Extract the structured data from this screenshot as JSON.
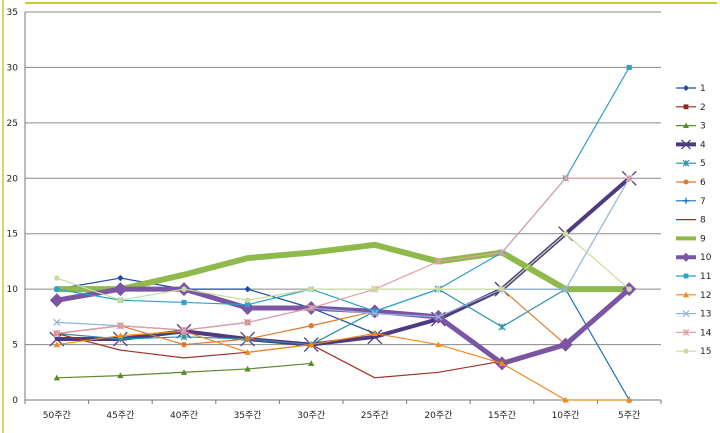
{
  "chart_data": {
    "type": "line",
    "categories": [
      "50주간",
      "45주간",
      "40주간",
      "35주간",
      "30주간",
      "25주간",
      "20주간",
      "15주간",
      "10주간",
      "5주간"
    ],
    "ylim": [
      0,
      35
    ],
    "yticks": [
      0,
      5,
      10,
      15,
      20,
      25,
      30,
      35
    ],
    "grid": true,
    "legend": "right",
    "series": [
      {
        "name": "1",
        "color": "#1f4e9b",
        "width": 1.2,
        "marker": "diamond",
        "values": [
          10,
          11,
          10,
          10,
          8.3,
          6,
          null,
          null,
          null,
          null
        ]
      },
      {
        "name": "2",
        "color": "#8e2a1e",
        "width": 1.2,
        "marker": "square",
        "values": [
          6,
          6.7,
          6.3,
          7,
          null,
          null,
          null,
          null,
          null,
          null
        ]
      },
      {
        "name": "3",
        "color": "#5c8a2a",
        "width": 1.2,
        "marker": "triangle",
        "values": [
          2,
          2.2,
          2.5,
          2.8,
          3.3,
          null,
          null,
          null,
          null,
          null
        ]
      },
      {
        "name": "4",
        "color": "#4e3a80",
        "width": 4,
        "marker": "x",
        "values": [
          5.5,
          5.5,
          6.2,
          5.5,
          5,
          5.7,
          7.3,
          10,
          15,
          20
        ]
      },
      {
        "name": "5",
        "color": "#2c8fa8",
        "width": 1.2,
        "marker": "star",
        "values": [
          6,
          5.5,
          5.7,
          5.5,
          5,
          8,
          10,
          6.6,
          10,
          null
        ]
      },
      {
        "name": "6",
        "color": "#e07a2a",
        "width": 1.2,
        "marker": "circle",
        "values": [
          6,
          6.7,
          5,
          5.5,
          6.7,
          8,
          null,
          10,
          5,
          null
        ]
      },
      {
        "name": "7",
        "color": "#1e6fbf",
        "width": 1.2,
        "marker": "plus",
        "values": [
          null,
          null,
          null,
          null,
          null,
          null,
          null,
          10,
          10,
          0
        ]
      },
      {
        "name": "8",
        "color": "#a0322a",
        "width": 1.2,
        "marker": "none",
        "values": [
          6,
          4.5,
          3.8,
          4.3,
          5,
          2,
          2.5,
          3.5,
          null,
          null
        ]
      },
      {
        "name": "9",
        "color": "#8fb94a",
        "width": 6,
        "marker": "none",
        "values": [
          10,
          10,
          11.3,
          12.8,
          13.3,
          14,
          12.5,
          13.3,
          10,
          10
        ]
      },
      {
        "name": "10",
        "color": "#7b54a3",
        "width": 5,
        "marker": "diamond",
        "values": [
          9,
          10,
          10,
          8.3,
          8.3,
          8,
          7.5,
          3.3,
          5,
          10
        ]
      },
      {
        "name": "11",
        "color": "#2fa0c8",
        "width": 1.2,
        "marker": "square",
        "values": [
          10,
          9,
          8.8,
          8.6,
          10,
          8,
          10,
          13.3,
          20,
          30
        ]
      },
      {
        "name": "12",
        "color": "#f08a1c",
        "width": 1.2,
        "marker": "triangle",
        "values": [
          5,
          5.8,
          6.2,
          4.3,
          5,
          6,
          5,
          3.3,
          0,
          0
        ]
      },
      {
        "name": "13",
        "color": "#93b4dc",
        "width": 1.2,
        "marker": "x",
        "values": [
          7,
          6.7,
          6.3,
          7,
          8.3,
          7.8,
          7.5,
          10,
          10,
          20
        ]
      },
      {
        "name": "14",
        "color": "#e2a0a8",
        "width": 1.2,
        "marker": "star",
        "values": [
          6,
          6.7,
          6.3,
          7,
          8.3,
          10,
          12.5,
          13.3,
          20,
          20
        ]
      },
      {
        "name": "15",
        "color": "#c8dca0",
        "width": 1.2,
        "marker": "circle",
        "values": [
          11,
          9,
          10,
          9,
          10,
          10,
          10,
          10,
          15,
          10
        ]
      }
    ]
  }
}
